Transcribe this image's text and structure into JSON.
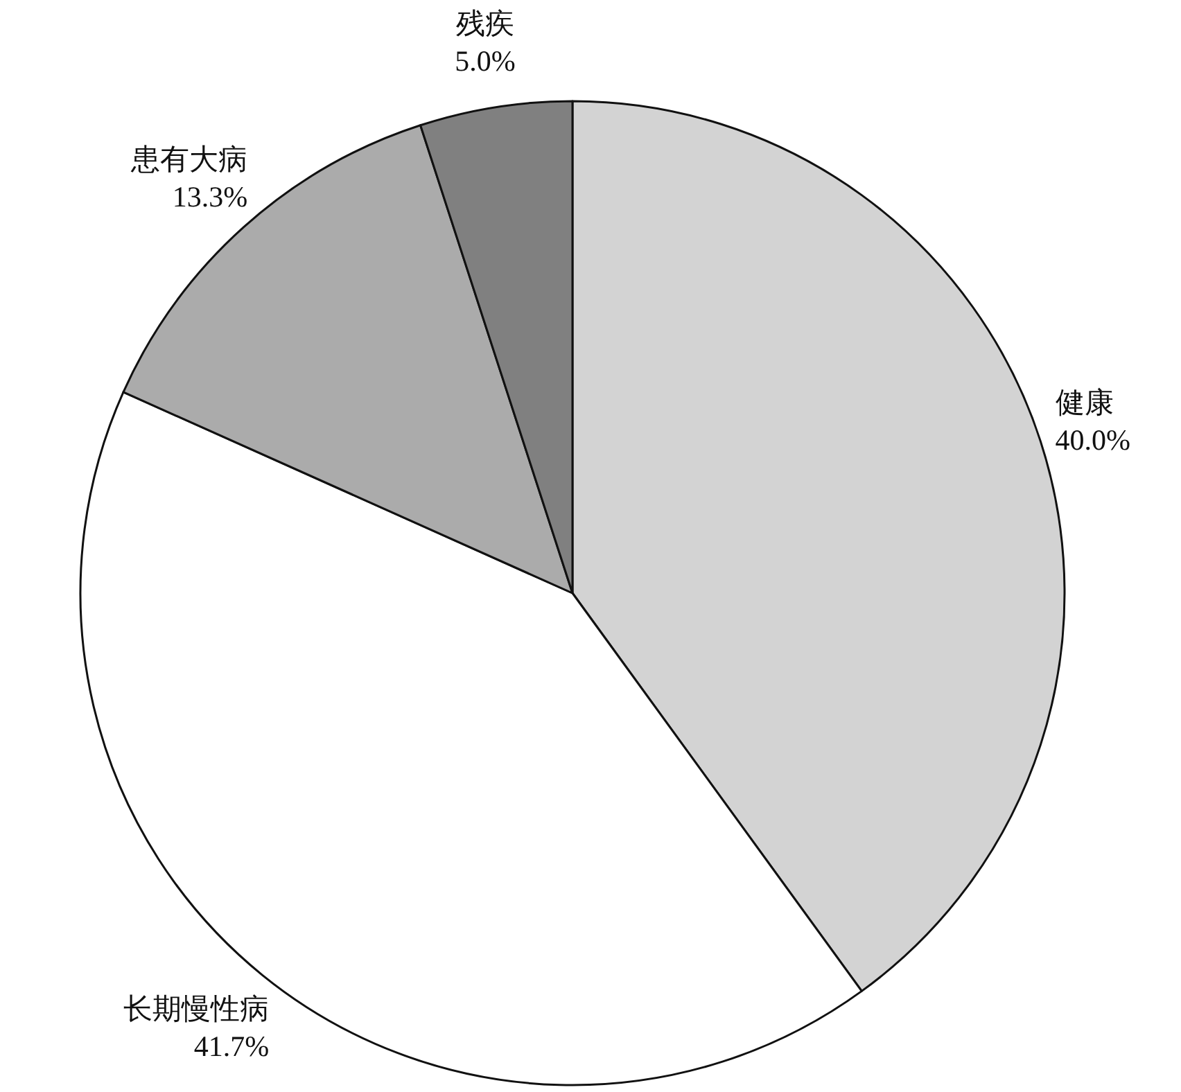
{
  "chart_data": {
    "type": "pie",
    "categories": [
      "健康",
      "长期慢性病",
      "患有大病",
      "残疾"
    ],
    "values": [
      40.0,
      41.7,
      13.3,
      5.0
    ],
    "value_labels": [
      "40.0%",
      "41.7%",
      "13.3%",
      "5.0%"
    ],
    "colors": [
      "#d3d3d3",
      "#ffffff",
      "#ababab",
      "#808080"
    ],
    "legend": false
  }
}
